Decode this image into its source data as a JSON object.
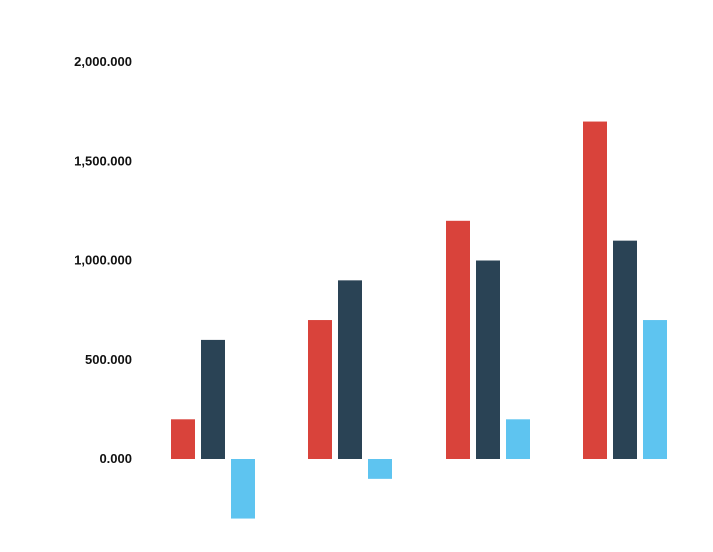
{
  "chart_data": {
    "type": "bar",
    "categories": [
      "",
      "",
      "",
      ""
    ],
    "series": [
      {
        "color": "#d9433b",
        "values": [
          200,
          700,
          1200,
          1700
        ]
      },
      {
        "color": "#2a4355",
        "values": [
          600,
          900,
          1000,
          1100
        ]
      },
      {
        "color": "#5ec4f0",
        "values": [
          -300,
          -100,
          200,
          700
        ]
      }
    ],
    "ylim": [
      -300,
      2000
    ],
    "yticks": [
      0,
      500,
      1000,
      1500,
      2000
    ],
    "ytick_labels": [
      "0.000",
      "500.000",
      "1,000.000",
      "1,500.000",
      "2,000.000"
    ],
    "grid": false,
    "legend": "none"
  }
}
